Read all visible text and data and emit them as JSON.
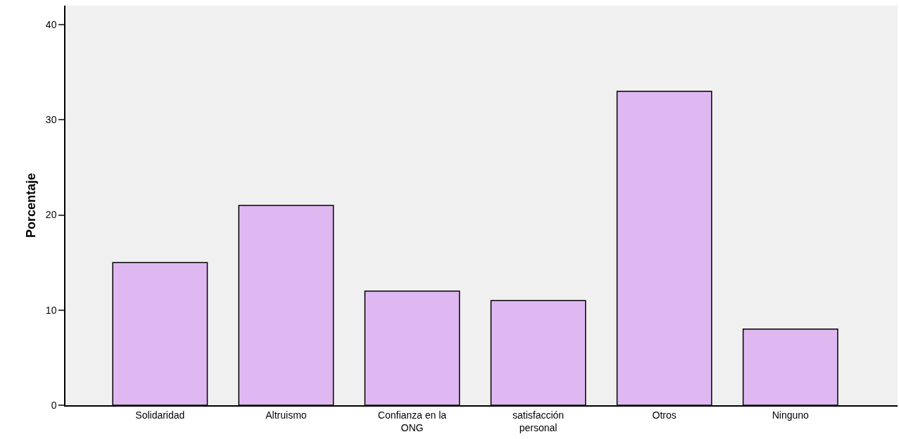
{
  "chart_data": {
    "type": "bar",
    "ylabel": "Porcentaje",
    "categories": [
      "Solidaridad",
      "Altruismo",
      "Confianza en la\nONG",
      "satisfacción\npersonal",
      "Otros",
      "Ninguno"
    ],
    "values": [
      15,
      21,
      12,
      11,
      33,
      8
    ],
    "color": "#dfb8f2",
    "ylim": [
      0,
      42
    ],
    "yticks": [
      0,
      10,
      20,
      30,
      40
    ],
    "grid": false
  }
}
